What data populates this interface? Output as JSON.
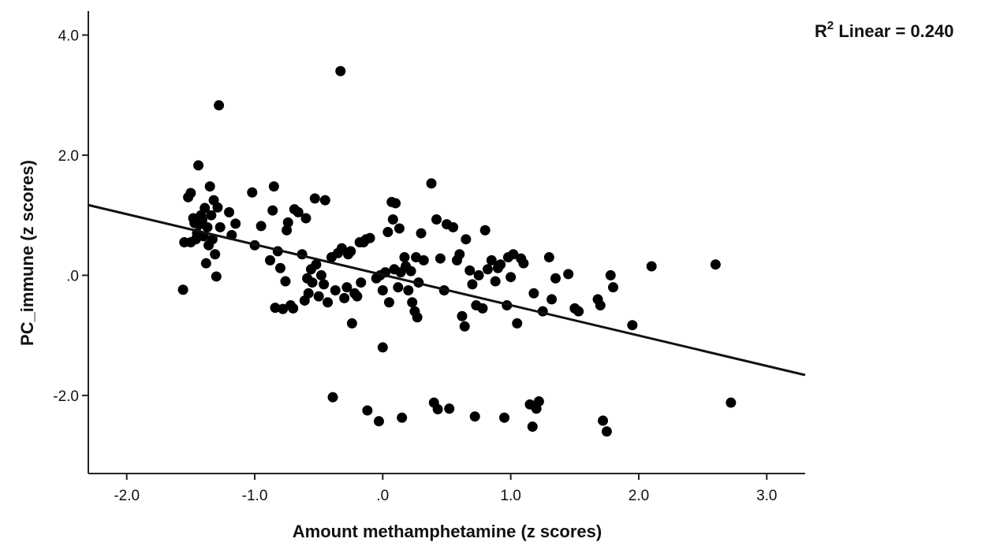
{
  "chart_data": {
    "type": "scatter",
    "xlabel": "Amount methamphetamine (z scores)",
    "ylabel": "PC_immune (z scores)",
    "annotation": {
      "prefix": "R",
      "superscript": "2",
      "text": " Linear = 0.240"
    },
    "xlim": [
      -2.3,
      3.3
    ],
    "ylim": [
      -3.3,
      4.4
    ],
    "xticks": [
      {
        "value": -2.0,
        "label": "-2.0"
      },
      {
        "value": -1.0,
        "label": "-1.0"
      },
      {
        "value": 0.0,
        "label": ".0"
      },
      {
        "value": 1.0,
        "label": "1.0"
      },
      {
        "value": 2.0,
        "label": "2.0"
      },
      {
        "value": 3.0,
        "label": "3.0"
      }
    ],
    "yticks": [
      {
        "value": 4.0,
        "label": "4.0"
      },
      {
        "value": 2.0,
        "label": "2.0"
      },
      {
        "value": 0.0,
        "label": ".0"
      },
      {
        "value": -2.0,
        "label": "-2.0"
      }
    ],
    "fit_line": {
      "x": [
        -2.3,
        3.3
      ],
      "y": [
        1.17,
        -1.66
      ]
    },
    "marker_color": "#000000",
    "points": [
      [
        -1.56,
        -0.24
      ],
      [
        -1.52,
        1.3
      ],
      [
        -1.5,
        1.37
      ],
      [
        -1.48,
        0.95
      ],
      [
        -1.47,
        0.87
      ],
      [
        -1.46,
        0.6
      ],
      [
        -1.45,
        0.7
      ],
      [
        -1.44,
        1.83
      ],
      [
        -1.43,
        0.85
      ],
      [
        -1.42,
        1.0
      ],
      [
        -1.41,
        0.92
      ],
      [
        -1.4,
        0.65
      ],
      [
        -1.39,
        1.12
      ],
      [
        -1.38,
        0.2
      ],
      [
        -1.37,
        0.8
      ],
      [
        -1.36,
        0.5
      ],
      [
        -1.35,
        1.48
      ],
      [
        -1.34,
        1.0
      ],
      [
        -1.33,
        0.6
      ],
      [
        -1.32,
        1.25
      ],
      [
        -1.31,
        0.35
      ],
      [
        -1.3,
        -0.02
      ],
      [
        -1.29,
        1.13
      ],
      [
        -1.28,
        2.83
      ],
      [
        -1.27,
        0.8
      ],
      [
        -1.5,
        0.55
      ],
      [
        -1.55,
        0.55
      ],
      [
        -1.2,
        1.05
      ],
      [
        -1.18,
        0.67
      ],
      [
        -1.15,
        0.86
      ],
      [
        -1.02,
        1.38
      ],
      [
        -1.0,
        0.5
      ],
      [
        -0.95,
        0.82
      ],
      [
        -0.88,
        0.25
      ],
      [
        -0.86,
        1.08
      ],
      [
        -0.85,
        1.48
      ],
      [
        -0.84,
        -0.54
      ],
      [
        -0.82,
        0.4
      ],
      [
        -0.8,
        0.12
      ],
      [
        -0.78,
        -0.56
      ],
      [
        -0.76,
        -0.1
      ],
      [
        -0.75,
        0.75
      ],
      [
        -0.74,
        0.88
      ],
      [
        -0.72,
        -0.5
      ],
      [
        -0.7,
        -0.55
      ],
      [
        -0.69,
        1.1
      ],
      [
        -0.66,
        1.05
      ],
      [
        -0.63,
        0.35
      ],
      [
        -0.61,
        -0.42
      ],
      [
        -0.6,
        0.95
      ],
      [
        -0.59,
        -0.05
      ],
      [
        -0.58,
        -0.3
      ],
      [
        -0.56,
        0.1
      ],
      [
        -0.55,
        -0.12
      ],
      [
        -0.53,
        1.28
      ],
      [
        -0.52,
        0.18
      ],
      [
        -0.5,
        -0.35
      ],
      [
        -0.48,
        0.0
      ],
      [
        -0.46,
        -0.15
      ],
      [
        -0.45,
        1.25
      ],
      [
        -0.43,
        -0.45
      ],
      [
        -0.4,
        0.3
      ],
      [
        -0.39,
        -2.03
      ],
      [
        -0.37,
        -0.25
      ],
      [
        -0.35,
        0.37
      ],
      [
        -0.33,
        3.4
      ],
      [
        -0.32,
        0.45
      ],
      [
        -0.3,
        -0.38
      ],
      [
        -0.28,
        -0.2
      ],
      [
        -0.27,
        0.35
      ],
      [
        -0.25,
        0.4
      ],
      [
        -0.24,
        -0.8
      ],
      [
        -0.22,
        -0.3
      ],
      [
        -0.2,
        -0.35
      ],
      [
        -0.18,
        0.55
      ],
      [
        -0.17,
        -0.12
      ],
      [
        -0.15,
        0.55
      ],
      [
        -0.13,
        0.6
      ],
      [
        -0.12,
        -2.25
      ],
      [
        -0.1,
        0.62
      ],
      [
        -0.05,
        -0.05
      ],
      [
        -0.03,
        -2.43
      ],
      [
        -0.02,
        0.0
      ],
      [
        0.0,
        -0.25
      ],
      [
        0.0,
        -1.2
      ],
      [
        0.02,
        0.05
      ],
      [
        0.04,
        0.72
      ],
      [
        0.05,
        -0.45
      ],
      [
        0.07,
        1.22
      ],
      [
        0.08,
        0.93
      ],
      [
        0.09,
        0.1
      ],
      [
        0.1,
        1.2
      ],
      [
        0.12,
        -0.2
      ],
      [
        0.13,
        0.78
      ],
      [
        0.14,
        0.05
      ],
      [
        0.15,
        -2.37
      ],
      [
        0.17,
        0.3
      ],
      [
        0.18,
        0.15
      ],
      [
        0.2,
        -0.25
      ],
      [
        0.22,
        0.07
      ],
      [
        0.23,
        -0.45
      ],
      [
        0.25,
        -0.6
      ],
      [
        0.26,
        0.3
      ],
      [
        0.27,
        -0.7
      ],
      [
        0.28,
        -0.12
      ],
      [
        0.3,
        0.7
      ],
      [
        0.32,
        0.25
      ],
      [
        0.38,
        1.53
      ],
      [
        0.4,
        -2.12
      ],
      [
        0.42,
        0.93
      ],
      [
        0.43,
        -2.23
      ],
      [
        0.45,
        0.28
      ],
      [
        0.48,
        -0.25
      ],
      [
        0.5,
        0.85
      ],
      [
        0.52,
        -2.22
      ],
      [
        0.55,
        0.8
      ],
      [
        0.58,
        0.25
      ],
      [
        0.6,
        0.35
      ],
      [
        0.62,
        -0.68
      ],
      [
        0.64,
        -0.85
      ],
      [
        0.65,
        0.6
      ],
      [
        0.68,
        0.08
      ],
      [
        0.7,
        -0.15
      ],
      [
        0.72,
        -2.35
      ],
      [
        0.73,
        -0.5
      ],
      [
        0.75,
        0.0
      ],
      [
        0.78,
        -0.55
      ],
      [
        0.8,
        0.75
      ],
      [
        0.82,
        0.1
      ],
      [
        0.85,
        0.25
      ],
      [
        0.88,
        -0.1
      ],
      [
        0.9,
        0.12
      ],
      [
        0.92,
        0.18
      ],
      [
        0.95,
        -2.37
      ],
      [
        0.97,
        -0.5
      ],
      [
        0.98,
        0.3
      ],
      [
        1.0,
        -0.03
      ],
      [
        1.02,
        0.35
      ],
      [
        1.05,
        -0.8
      ],
      [
        1.08,
        0.28
      ],
      [
        1.1,
        0.2
      ],
      [
        1.15,
        -2.15
      ],
      [
        1.17,
        -2.52
      ],
      [
        1.18,
        -0.3
      ],
      [
        1.2,
        -2.22
      ],
      [
        1.22,
        -2.1
      ],
      [
        1.25,
        -0.6
      ],
      [
        1.3,
        0.3
      ],
      [
        1.32,
        -0.4
      ],
      [
        1.35,
        -0.05
      ],
      [
        1.45,
        0.02
      ],
      [
        1.5,
        -0.55
      ],
      [
        1.53,
        -0.6
      ],
      [
        1.68,
        -0.4
      ],
      [
        1.7,
        -0.5
      ],
      [
        1.72,
        -2.42
      ],
      [
        1.75,
        -2.6
      ],
      [
        1.78,
        0.0
      ],
      [
        1.8,
        -0.2
      ],
      [
        1.95,
        -0.83
      ],
      [
        2.1,
        0.15
      ],
      [
        2.6,
        0.18
      ],
      [
        2.72,
        -2.12
      ]
    ]
  }
}
